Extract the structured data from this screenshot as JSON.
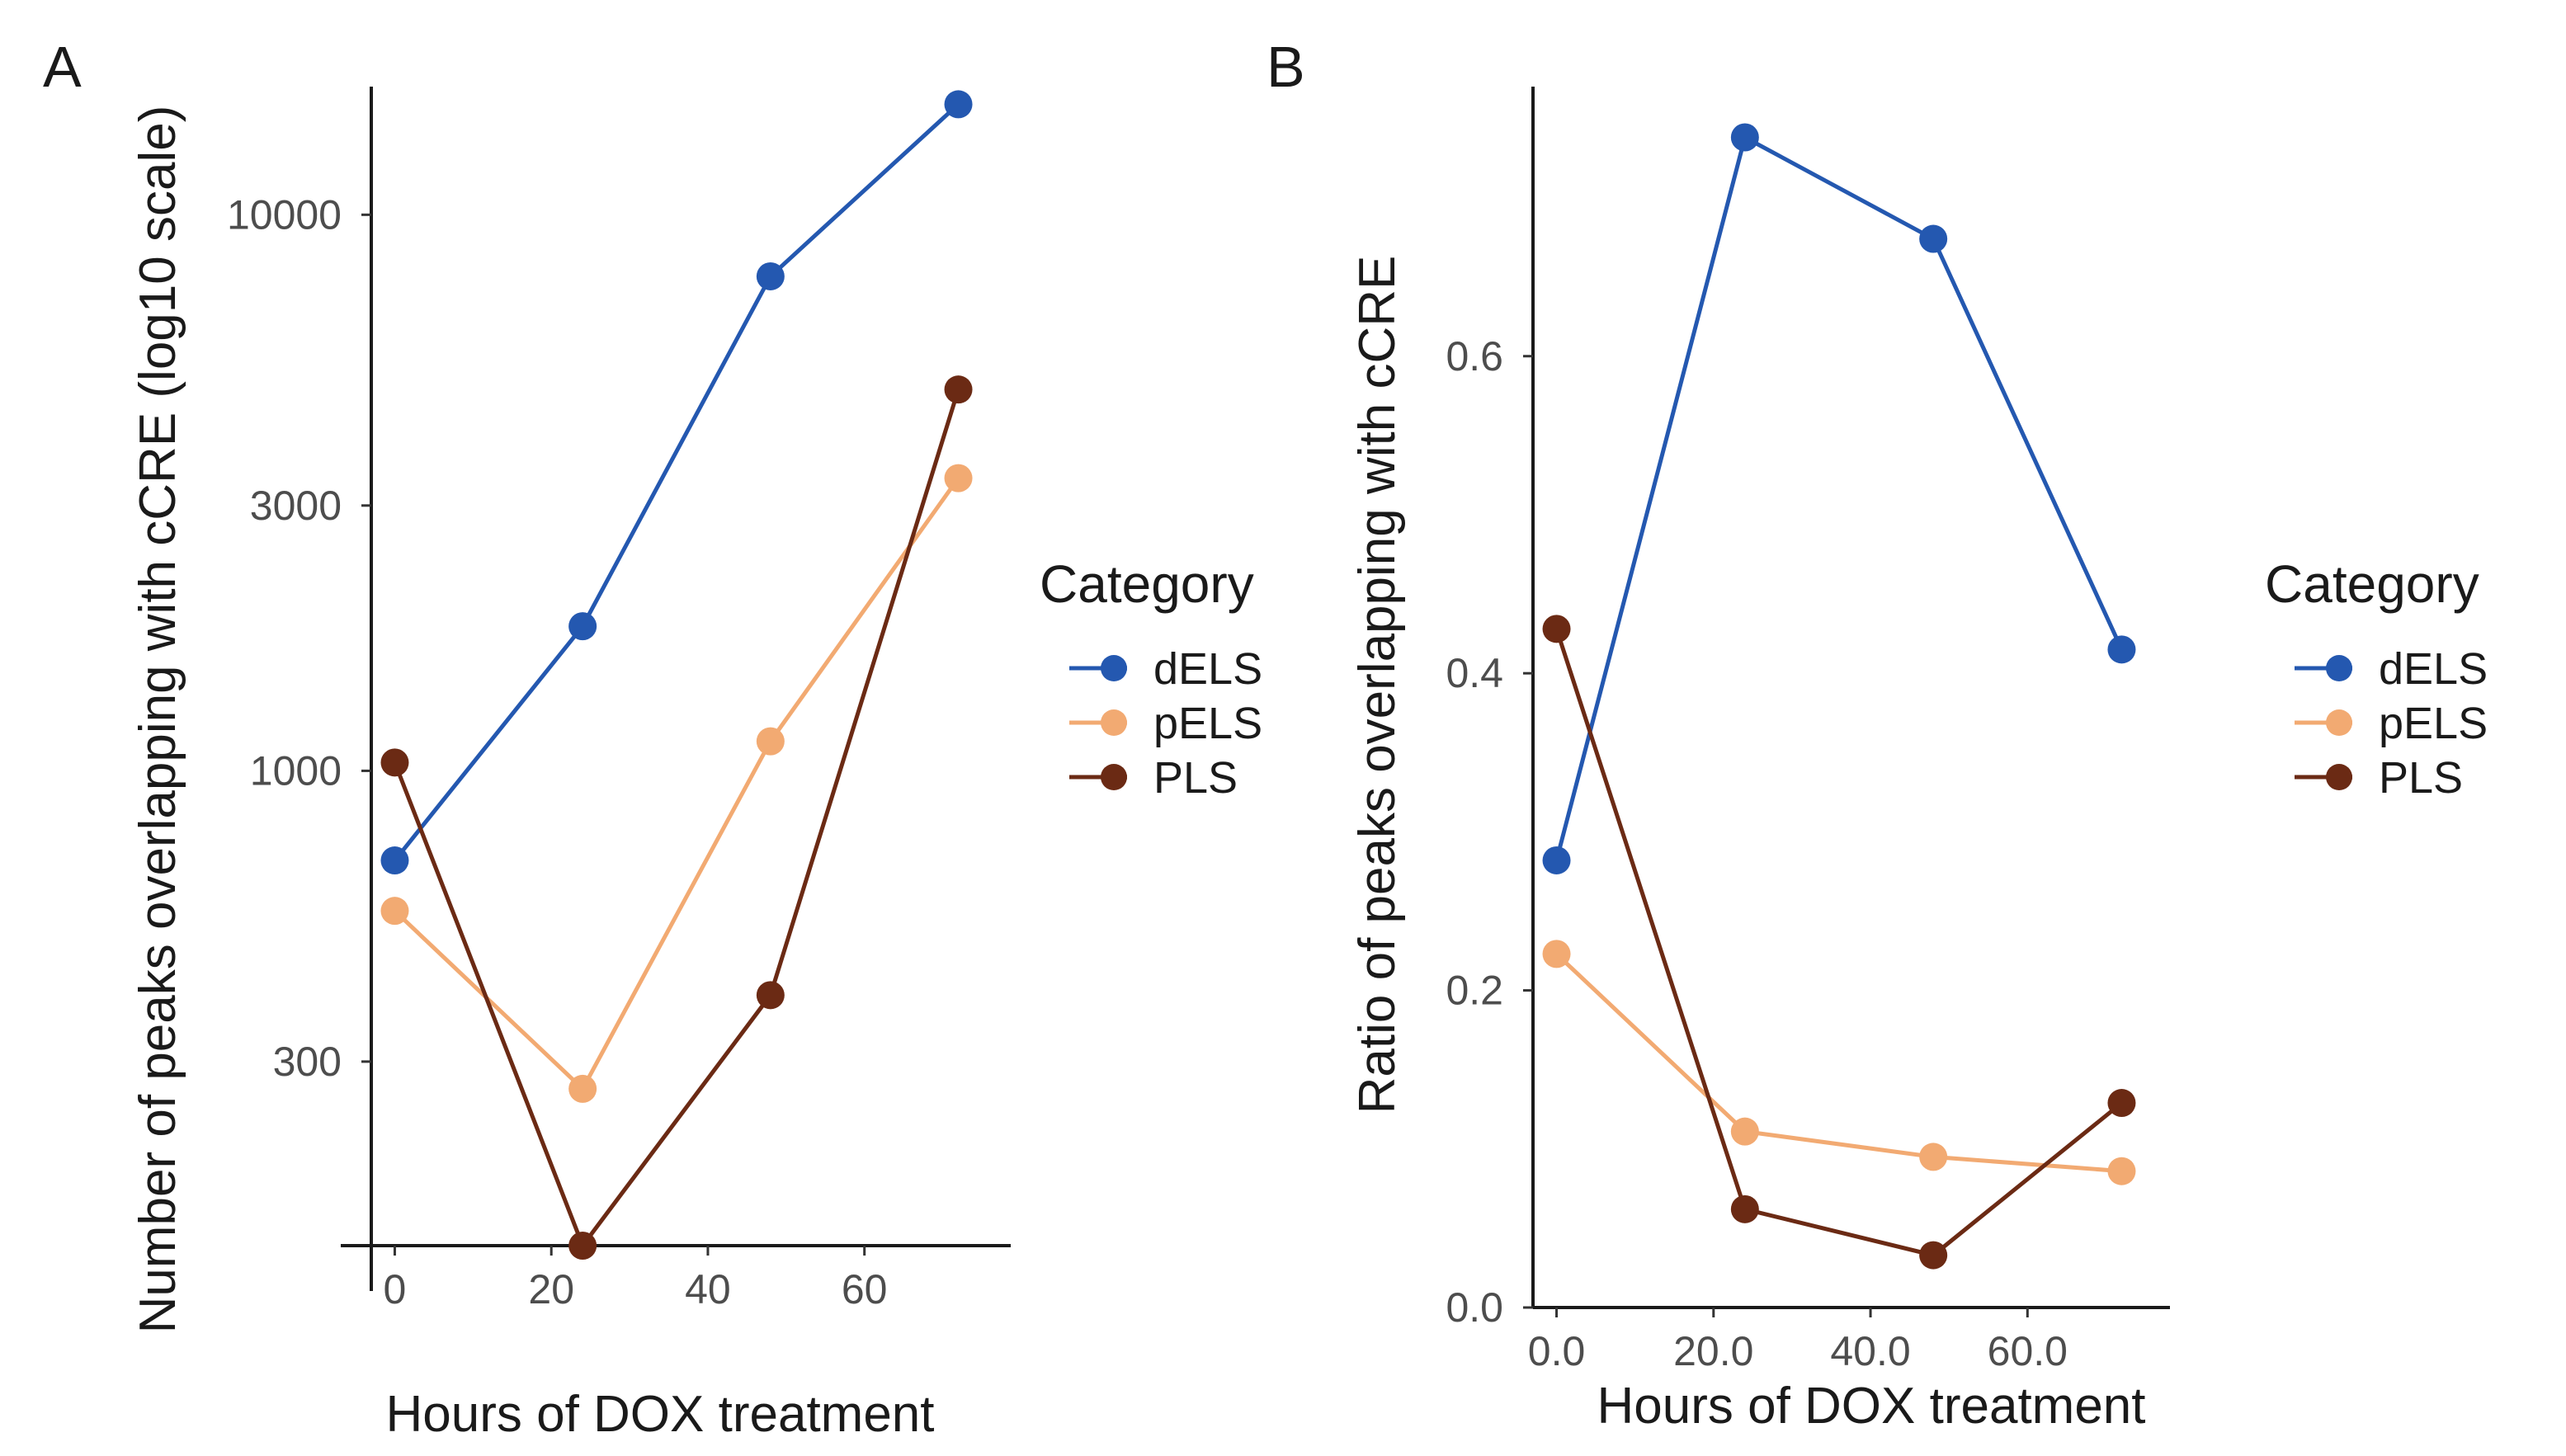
{
  "series_colors": {
    "dELS": "#2458b0",
    "pELS": "#f2aa72",
    "PLS": "#6b2a14"
  },
  "chart_data": [
    {
      "panel": "A",
      "type": "line",
      "xlabel": "Hours of DOX treatment",
      "ylabel": "Number of peaks overlapping with cCRE (log10 scale)",
      "yscale": "log10",
      "xlim": [
        -3,
        75
      ],
      "ylim": [
        140,
        17000
      ],
      "xticks": [
        0,
        20,
        40,
        60
      ],
      "yticks": [
        300,
        1000,
        3000,
        10000
      ],
      "grid": false,
      "legend_title": "Category",
      "legend_position": "right",
      "series": [
        {
          "name": "dELS",
          "x": [
            0,
            24,
            48,
            72
          ],
          "y": [
            690,
            1820,
            7750,
            15800
          ]
        },
        {
          "name": "pELS",
          "x": [
            0,
            24,
            48,
            72
          ],
          "y": [
            560,
            268,
            1130,
            3360
          ]
        },
        {
          "name": "PLS",
          "x": [
            0,
            24,
            48,
            72
          ],
          "y": [
            1035,
            140,
            395,
            4850
          ]
        }
      ]
    },
    {
      "panel": "B",
      "type": "line",
      "xlabel": "Hours of DOX treatment",
      "ylabel": "Ratio of peaks overlapping with cCRE",
      "yscale": "linear",
      "xlim": [
        -3,
        75
      ],
      "ylim": [
        0,
        0.77
      ],
      "xticks": [
        0,
        20,
        40,
        60
      ],
      "yticks": [
        0.0,
        0.2,
        0.4,
        0.6
      ],
      "grid": false,
      "legend_title": "Category",
      "legend_position": "right",
      "series": [
        {
          "name": "dELS",
          "x": [
            0,
            24,
            48,
            72
          ],
          "y": [
            0.282,
            0.738,
            0.674,
            0.415
          ]
        },
        {
          "name": "pELS",
          "x": [
            0,
            24,
            48,
            72
          ],
          "y": [
            0.223,
            0.111,
            0.095,
            0.086
          ]
        },
        {
          "name": "PLS",
          "x": [
            0,
            24,
            48,
            72
          ],
          "y": [
            0.428,
            0.062,
            0.033,
            0.129
          ]
        }
      ]
    }
  ]
}
